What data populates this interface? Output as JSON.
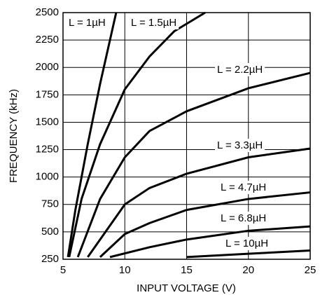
{
  "chart_data": {
    "type": "line",
    "xlabel": "INPUT VOLTAGE (V)",
    "ylabel": "FREQUENCY (kHz)",
    "xlim": [
      5,
      25
    ],
    "xticks": [
      5,
      10,
      15,
      20,
      25
    ],
    "ylim": [
      250,
      2500
    ],
    "yticks": [
      250,
      500,
      750,
      1000,
      1250,
      1500,
      1750,
      2000,
      2250,
      2500
    ],
    "grid": true,
    "series": [
      {
        "name": "L = 1µH",
        "color": "#000000",
        "x": [
          5.4,
          6,
          7,
          8,
          9,
          9.3
        ],
        "values": [
          270,
          700,
          1300,
          1850,
          2350,
          2500
        ]
      },
      {
        "name": "L = 1.5µH",
        "color": "#000000",
        "x": [
          5.5,
          6.5,
          8,
          10,
          12,
          14,
          16.5
        ],
        "values": [
          270,
          800,
          1300,
          1800,
          2100,
          2330,
          2500
        ]
      },
      {
        "name": "L = 2.2µH",
        "color": "#000000",
        "x": [
          6.2,
          8,
          10,
          12,
          15,
          20,
          25
        ],
        "values": [
          270,
          800,
          1180,
          1420,
          1600,
          1810,
          1950
        ]
      },
      {
        "name": "L = 3.3µH",
        "color": "#000000",
        "x": [
          7,
          10,
          12,
          15,
          20,
          25
        ],
        "values": [
          270,
          750,
          900,
          1030,
          1180,
          1260
        ]
      },
      {
        "name": "L = 4.7µH",
        "color": "#000000",
        "x": [
          8,
          10,
          12,
          15,
          20,
          25
        ],
        "values": [
          270,
          480,
          580,
          700,
          800,
          860
        ]
      },
      {
        "name": "L = 6.8µH",
        "color": "#000000",
        "x": [
          8.8,
          12,
          15,
          20,
          25
        ],
        "values": [
          270,
          360,
          430,
          510,
          550
        ]
      },
      {
        "name": "L = 10µH",
        "color": "#000000",
        "x": [
          15,
          20,
          25
        ],
        "values": [
          270,
          300,
          330
        ]
      }
    ]
  }
}
